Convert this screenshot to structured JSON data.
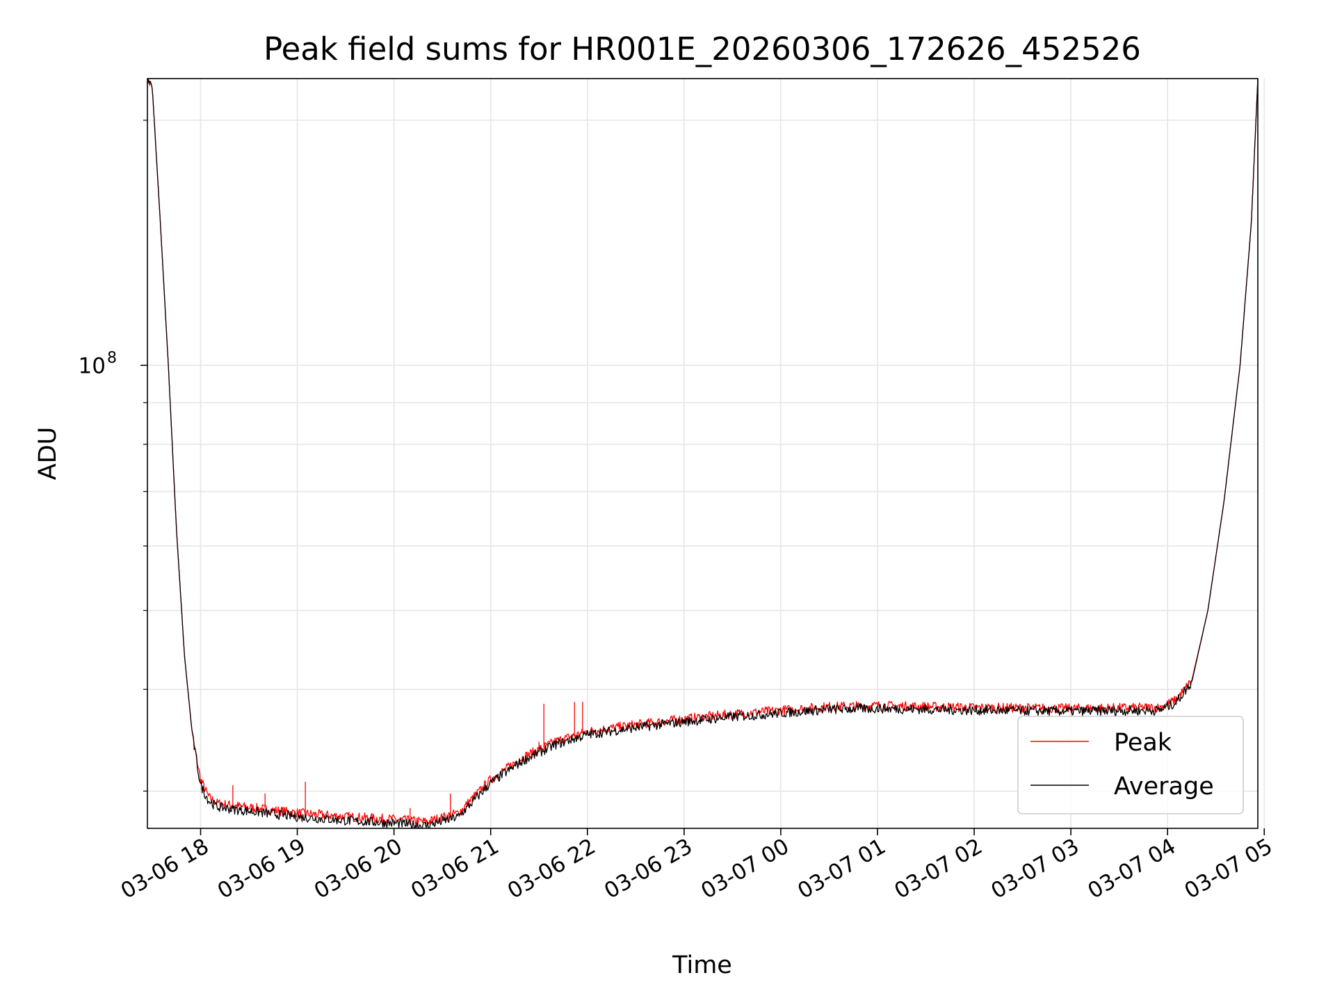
{
  "chart_data": {
    "type": "line",
    "title": "Peak field sums for HR001E_20260306_172626_452526",
    "xlabel": "Time",
    "ylabel": "ADU",
    "y_scale": "log",
    "grid": true,
    "legend_position": "lower-right",
    "x_range": [
      "2026-03-06 17:27",
      "2026-03-07 04:56"
    ],
    "ylim": [
      27000000,
      225000000
    ],
    "x_ticks": [
      {
        "time": "2026-03-06 18:00",
        "label": "03-06 18"
      },
      {
        "time": "2026-03-06 19:00",
        "label": "03-06 19"
      },
      {
        "time": "2026-03-06 20:00",
        "label": "03-06 20"
      },
      {
        "time": "2026-03-06 21:00",
        "label": "03-06 21"
      },
      {
        "time": "2026-03-06 22:00",
        "label": "03-06 22"
      },
      {
        "time": "2026-03-06 23:00",
        "label": "03-06 23"
      },
      {
        "time": "2026-03-07 00:00",
        "label": "03-07 00"
      },
      {
        "time": "2026-03-07 01:00",
        "label": "03-07 01"
      },
      {
        "time": "2026-03-07 02:00",
        "label": "03-07 02"
      },
      {
        "time": "2026-03-07 03:00",
        "label": "03-07 03"
      },
      {
        "time": "2026-03-07 04:00",
        "label": "03-07 04"
      },
      {
        "time": "2026-03-07 05:00",
        "label": "03-07 05"
      }
    ],
    "y_ticks": [
      {
        "value": 100000000,
        "label_base": "10",
        "label_exp": "8"
      }
    ],
    "series": [
      {
        "name": "Peak",
        "color": "#ff0000",
        "x": [
          "2026-03-06 17:27",
          "2026-03-06 17:30",
          "2026-03-06 17:35",
          "2026-03-06 17:40",
          "2026-03-06 17:45",
          "2026-03-06 17:50",
          "2026-03-06 17:55",
          "2026-03-06 18:00",
          "2026-03-06 18:05",
          "2026-03-06 18:10",
          "2026-03-06 18:20",
          "2026-03-06 18:40",
          "2026-03-06 19:00",
          "2026-03-06 19:30",
          "2026-03-06 20:00",
          "2026-03-06 20:20",
          "2026-03-06 20:40",
          "2026-03-06 21:00",
          "2026-03-06 21:20",
          "2026-03-06 21:40",
          "2026-03-06 22:00",
          "2026-03-06 22:30",
          "2026-03-06 23:00",
          "2026-03-06 23:30",
          "2026-03-07 00:00",
          "2026-03-07 00:30",
          "2026-03-07 01:00",
          "2026-03-07 02:00",
          "2026-03-07 03:00",
          "2026-03-07 03:55",
          "2026-03-07 04:05",
          "2026-03-07 04:15",
          "2026-03-07 04:25",
          "2026-03-07 04:35",
          "2026-03-07 04:45",
          "2026-03-07 04:52",
          "2026-03-07 04:56"
        ],
        "values": [
          225000000,
          220000000,
          150000000,
          100000000,
          63000000,
          44000000,
          35000000,
          31000000,
          29500000,
          29000000,
          28800000,
          28500000,
          28200000,
          27900000,
          27700000,
          27500000,
          28200000,
          31000000,
          33000000,
          34500000,
          35500000,
          36200000,
          36800000,
          37300000,
          37700000,
          38100000,
          38200000,
          38000000,
          37900000,
          38000000,
          38800000,
          41000000,
          50000000,
          68000000,
          100000000,
          150000000,
          225000000
        ]
      },
      {
        "name": "Average",
        "color": "#000000",
        "x": [
          "2026-03-06 17:27",
          "2026-03-06 17:30",
          "2026-03-06 17:35",
          "2026-03-06 17:40",
          "2026-03-06 17:45",
          "2026-03-06 17:50",
          "2026-03-06 17:55",
          "2026-03-06 18:00",
          "2026-03-06 18:05",
          "2026-03-06 18:10",
          "2026-03-06 18:20",
          "2026-03-06 18:40",
          "2026-03-06 19:00",
          "2026-03-06 19:30",
          "2026-03-06 20:00",
          "2026-03-06 20:20",
          "2026-03-06 20:40",
          "2026-03-06 21:00",
          "2026-03-06 21:20",
          "2026-03-06 21:40",
          "2026-03-06 22:00",
          "2026-03-06 22:30",
          "2026-03-06 23:00",
          "2026-03-06 23:30",
          "2026-03-07 00:00",
          "2026-03-07 00:30",
          "2026-03-07 01:00",
          "2026-03-07 02:00",
          "2026-03-07 03:00",
          "2026-03-07 03:55",
          "2026-03-07 04:05",
          "2026-03-07 04:15",
          "2026-03-07 04:25",
          "2026-03-07 04:35",
          "2026-03-07 04:45",
          "2026-03-07 04:52",
          "2026-03-07 04:56"
        ],
        "values": [
          225000000,
          220000000,
          150000000,
          100000000,
          63000000,
          44000000,
          35000000,
          30500000,
          29200000,
          28700000,
          28500000,
          28200000,
          27900000,
          27600000,
          27400000,
          27200000,
          27900000,
          30700000,
          32700000,
          34200000,
          35200000,
          35900000,
          36500000,
          37000000,
          37400000,
          37800000,
          37900000,
          37700000,
          37600000,
          37700000,
          38500000,
          40800000,
          50000000,
          68000000,
          100000000,
          150000000,
          225000000
        ]
      }
    ],
    "spikes": [
      {
        "series": "Peak",
        "time": "2026-03-06 18:20",
        "value": 30500000
      },
      {
        "series": "Peak",
        "time": "2026-03-06 18:40",
        "value": 29800000
      },
      {
        "series": "Peak",
        "time": "2026-03-06 19:05",
        "value": 30800000
      },
      {
        "series": "Peak",
        "time": "2026-03-06 20:10",
        "value": 28600000
      },
      {
        "series": "Peak",
        "time": "2026-03-06 20:35",
        "value": 29800000
      },
      {
        "series": "Peak",
        "time": "2026-03-06 21:30",
        "value": 34500000
      },
      {
        "series": "Peak",
        "time": "2026-03-06 21:33",
        "value": 38400000
      },
      {
        "series": "Peak",
        "time": "2026-03-06 21:52",
        "value": 38600000
      },
      {
        "series": "Peak",
        "time": "2026-03-06 21:57",
        "value": 38600000
      }
    ]
  }
}
